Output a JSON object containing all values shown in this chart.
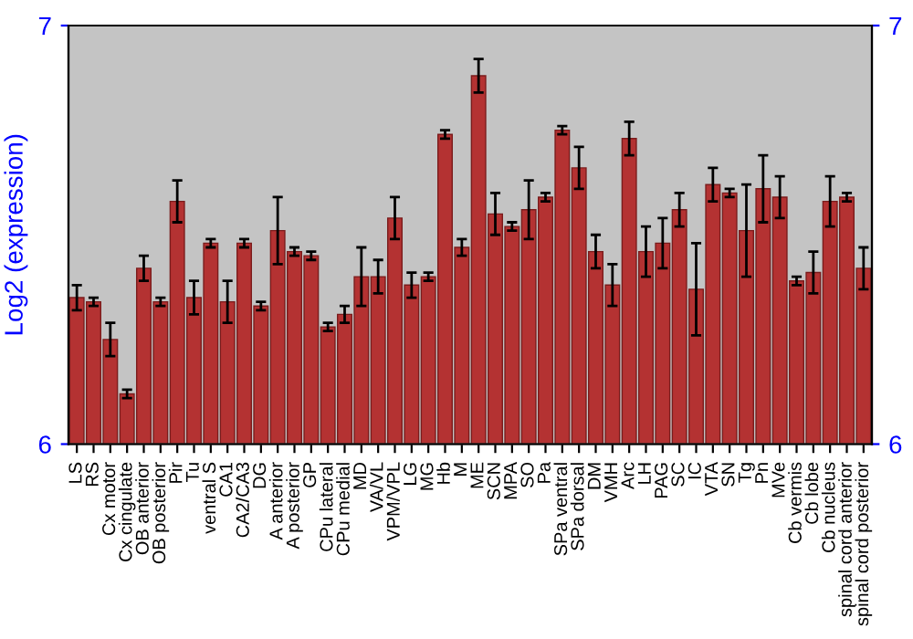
{
  "chart_data": {
    "type": "bar",
    "ylabel": "Log2 (expression)",
    "categories": [
      "LS",
      "RS",
      "Cx motor",
      "Cx cingulate",
      "OB anterior",
      "OB posterior",
      "Pir",
      "Tu",
      "ventral S",
      "CA1",
      "CA2/CA3",
      "DG",
      "A anterior",
      "A posterior",
      "GP",
      "CPu lateral",
      "CPu medial",
      "MD",
      "VA/VL",
      "VPM/VPL",
      "LG",
      "MG",
      "Hb",
      "M",
      "ME",
      "SCN",
      "MPA",
      "SO",
      "Pa",
      "SPa ventral",
      "SPa dorsal",
      "DM",
      "VMH",
      "Arc",
      "LH",
      "PAG",
      "SC",
      "IC",
      "VTA",
      "SN",
      "Tg",
      "Pn",
      "MVe",
      "Cb vermis",
      "Cb lobe",
      "Cb nucleus",
      "spinal cord anterior",
      "spinal cord posterior"
    ],
    "values": [
      6.35,
      6.34,
      6.25,
      6.12,
      6.42,
      6.34,
      6.58,
      6.35,
      6.48,
      6.34,
      6.48,
      6.33,
      6.51,
      6.46,
      6.45,
      6.28,
      6.31,
      6.4,
      6.4,
      6.54,
      6.38,
      6.4,
      6.74,
      6.47,
      6.88,
      6.55,
      6.52,
      6.56,
      6.59,
      6.75,
      6.66,
      6.46,
      6.38,
      6.73,
      6.46,
      6.48,
      6.56,
      6.37,
      6.62,
      6.6,
      6.51,
      6.61,
      6.59,
      6.39,
      6.41,
      6.58,
      6.59,
      6.42
    ],
    "errors": [
      0.03,
      0.01,
      0.04,
      0.01,
      0.03,
      0.01,
      0.05,
      0.04,
      0.01,
      0.05,
      0.01,
      0.01,
      0.08,
      0.01,
      0.01,
      0.01,
      0.02,
      0.07,
      0.04,
      0.05,
      0.03,
      0.01,
      0.01,
      0.02,
      0.04,
      0.05,
      0.01,
      0.07,
      0.01,
      0.01,
      0.05,
      0.04,
      0.05,
      0.04,
      0.06,
      0.06,
      0.04,
      0.11,
      0.04,
      0.01,
      0.11,
      0.08,
      0.05,
      0.01,
      0.05,
      0.06,
      0.01,
      0.05
    ],
    "color": "#b43232",
    "ylim": [
      6,
      7
    ],
    "yticks": [
      6,
      7
    ],
    "y2lim": [
      6,
      7
    ],
    "y2ticks": [
      6,
      7
    ],
    "grid": false
  }
}
